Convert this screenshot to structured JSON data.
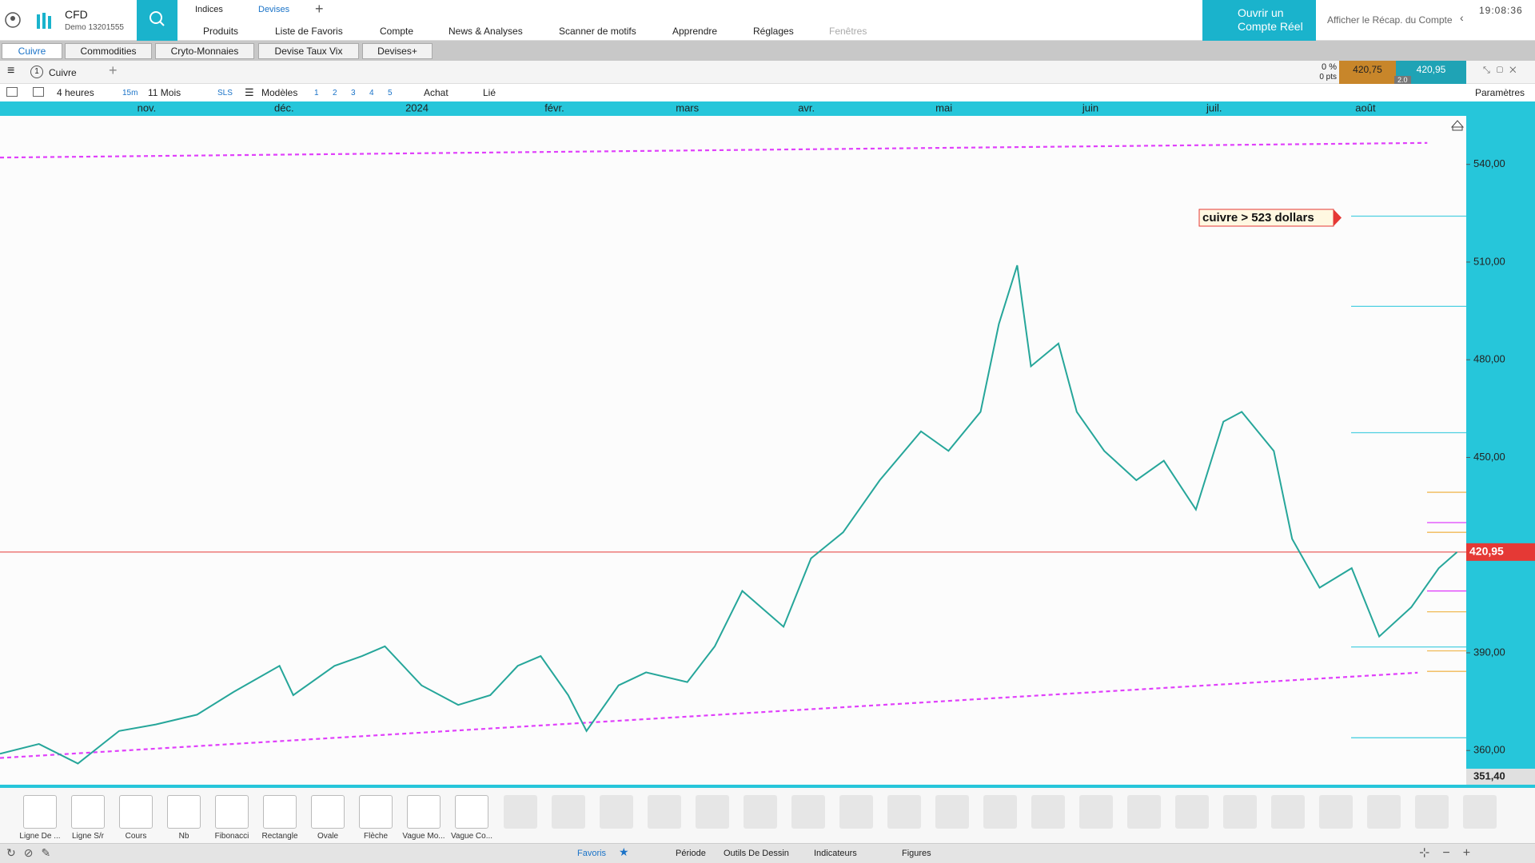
{
  "header": {
    "brand": "CFD",
    "account": "Demo 13201555",
    "tabs": [
      "Indices",
      "Devises"
    ],
    "nav": [
      "Produits",
      "Liste de Favoris",
      "Compte",
      "News & Analyses",
      "Scanner de motifs",
      "Apprendre",
      "Réglages",
      "Fenêtres"
    ],
    "open_account": [
      "Ouvrir un",
      "Compte Réel"
    ],
    "summary": "Afficher le Récap. du Compte",
    "time": "19:08:36"
  },
  "watchlists": [
    "Cuivre",
    "Commodities",
    "Cryto-Monnaies",
    "Devise Taux Vix",
    "Devises+"
  ],
  "chart_toolbar": {
    "slot": "1",
    "instrument": "Cuivre",
    "change_pct": "0 %",
    "change_pts": "0 pts",
    "bid": "420,75",
    "spread": "2.0",
    "ask": "420,95"
  },
  "settings_toolbar": {
    "interval": "4 heures",
    "quick": "15m",
    "range": "11 Mois",
    "sls": "SLS",
    "templates": "Modèles",
    "presets": [
      "1",
      "2",
      "3",
      "4",
      "5"
    ],
    "buy": "Achat",
    "linked": "Lié",
    "params": "Paramètres"
  },
  "chart_data": {
    "type": "line",
    "x": [
      0,
      8.5,
      17,
      26,
      34,
      43,
      51,
      61,
      64,
      73,
      79,
      84,
      92,
      100,
      107,
      113,
      118,
      124,
      128,
      135,
      141,
      150,
      156,
      162,
      171,
      177,
      184,
      192,
      201,
      207,
      214,
      218,
      222,
      225,
      231,
      235,
      241,
      248,
      254,
      261,
      267,
      271,
      278,
      282,
      288,
      295,
      301,
      308,
      314,
      318
    ],
    "series": [
      {
        "name": "Cuivre",
        "color": "#26a69a",
        "values": [
          359,
          362,
          356,
          366,
          368,
          371,
          378,
          386,
          377,
          386,
          389,
          392,
          380,
          374,
          377,
          386,
          389,
          377,
          366,
          380,
          384,
          381,
          392,
          409,
          398,
          419,
          427,
          443,
          458,
          452,
          464,
          491,
          509,
          478,
          485,
          464,
          452,
          443,
          449,
          434,
          461,
          464,
          452,
          425,
          410,
          416,
          395,
          404,
          416,
          420.95
        ]
      }
    ],
    "xlim": [
      0,
      320
    ],
    "xticks": [
      {
        "value": 32,
        "label": "nov."
      },
      {
        "value": 62,
        "label": "déc."
      },
      {
        "value": 91,
        "label": "2024"
      },
      {
        "value": 121,
        "label": "févr."
      },
      {
        "value": 150,
        "label": "mars"
      },
      {
        "value": 176,
        "label": "avr."
      },
      {
        "value": 206,
        "label": "mai"
      },
      {
        "value": 238,
        "label": "juin"
      },
      {
        "value": 265,
        "label": "juil."
      },
      {
        "value": 298,
        "label": "août"
      }
    ],
    "ylim": [
      349.5,
      554.9
    ],
    "yticks": [
      {
        "value": 360,
        "label": "360,00"
      },
      {
        "value": 390,
        "label": "390,00"
      },
      {
        "value": 420,
        "label": "420,00"
      },
      {
        "value": 450,
        "label": "450,00"
      },
      {
        "value": 480,
        "label": "480,00"
      },
      {
        "value": 510,
        "label": "510,00"
      },
      {
        "value": 540,
        "label": "540,00"
      }
    ],
    "current_price": 420.95,
    "current_price_label": "420,95",
    "current_price_color": "#e53935",
    "axis_bottom_label": "351,40",
    "trendlines": [
      {
        "x": [
          0,
          311.5
        ],
        "y": [
          542.1,
          546.6
        ],
        "color": "#e040fb"
      },
      {
        "x": [
          0,
          309.4
        ],
        "y": [
          357.7,
          383.9
        ],
        "color": "#e040fb"
      }
    ],
    "levels": [
      {
        "value": 524.1,
        "color": "#4dd0e1"
      },
      {
        "value": 496.4,
        "color": "#4dd0e1"
      },
      {
        "value": 457.6,
        "color": "#4dd0e1"
      },
      {
        "value": 391.8,
        "color": "#4dd0e1"
      },
      {
        "value": 363.9,
        "color": "#4dd0e1"
      },
      {
        "value": 439.3,
        "color": "#f0b955"
      },
      {
        "value": 427.0,
        "color": "#f0b955"
      },
      {
        "value": 402.6,
        "color": "#f0b955"
      },
      {
        "value": 390.6,
        "color": "#f0b955"
      },
      {
        "value": 384.3,
        "color": "#f0b955"
      },
      {
        "value": 430.0,
        "color": "#e040fb"
      },
      {
        "value": 409.0,
        "color": "#e040fb"
      }
    ],
    "annotation": "cuivre > 523 dollars"
  },
  "tools": [
    "Ligne De ...",
    "Ligne S/r",
    "Cours",
    "Nb",
    "Fibonacci",
    "Rectangle",
    "Ovale",
    "Flèche",
    "Vague Mo...",
    "Vague Co..."
  ],
  "footer": {
    "tabs": [
      "Favoris",
      "Période",
      "Outils De Dessin",
      "Indicateurs",
      "Figures"
    ]
  }
}
